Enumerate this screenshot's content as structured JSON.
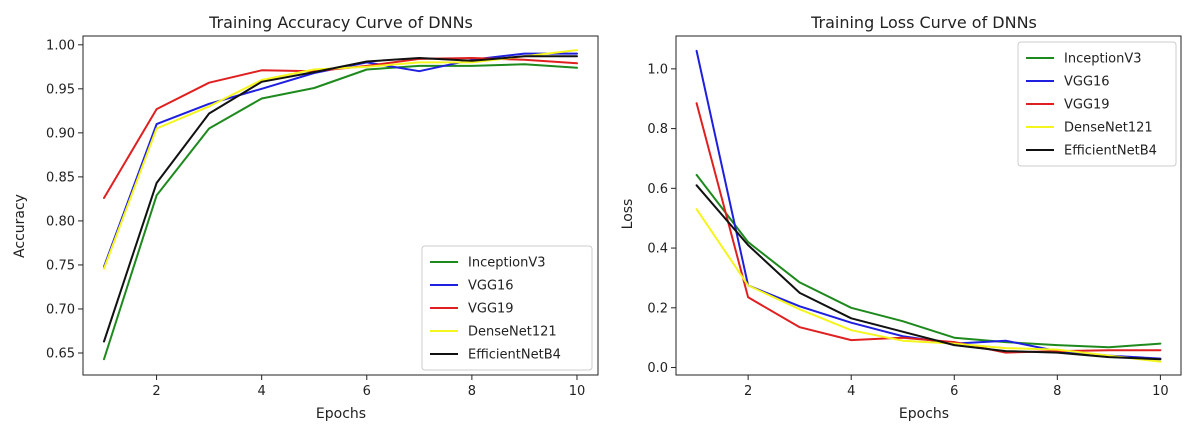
{
  "chart_data": [
    {
      "type": "line",
      "title": "Training Accuracy Curve of DNNs",
      "xlabel": "Epochs",
      "ylabel": "Accuracy",
      "xlim": [
        0.6,
        10.4
      ],
      "ylim": [
        0.625,
        1.01
      ],
      "xticks": [
        2,
        4,
        6,
        8,
        10
      ],
      "yticks": [
        0.65,
        0.7,
        0.75,
        0.8,
        0.85,
        0.9,
        0.95,
        1.0
      ],
      "ytick_format": 2,
      "grid": false,
      "legend_position": "lower-right",
      "x": [
        1,
        2,
        3,
        4,
        5,
        6,
        7,
        8,
        9,
        10
      ],
      "series": [
        {
          "name": "InceptionV3",
          "color": "#1e8a1e",
          "values": [
            0.643,
            0.829,
            0.905,
            0.939,
            0.951,
            0.972,
            0.976,
            0.976,
            0.978,
            0.974
          ]
        },
        {
          "name": "VGG16",
          "color": "#1f1fe0",
          "values": [
            0.748,
            0.91,
            0.933,
            0.95,
            0.968,
            0.98,
            0.97,
            0.983,
            0.99,
            0.99
          ]
        },
        {
          "name": "VGG19",
          "color": "#e02020",
          "values": [
            0.826,
            0.927,
            0.957,
            0.971,
            0.97,
            0.976,
            0.984,
            0.985,
            0.983,
            0.979
          ]
        },
        {
          "name": "DenseNet121",
          "color": "#f5f51e",
          "values": [
            0.746,
            0.905,
            0.93,
            0.96,
            0.972,
            0.975,
            0.98,
            0.98,
            0.987,
            0.994
          ]
        },
        {
          "name": "EfficientNetB4",
          "color": "#111111",
          "values": [
            0.663,
            0.843,
            0.922,
            0.958,
            0.969,
            0.981,
            0.985,
            0.982,
            0.987,
            0.987
          ]
        }
      ]
    },
    {
      "type": "line",
      "title": "Training Loss Curve of DNNs",
      "xlabel": "Epochs",
      "ylabel": "Loss",
      "xlim": [
        0.6,
        10.4
      ],
      "ylim": [
        -0.025,
        1.11
      ],
      "xticks": [
        2,
        4,
        6,
        8,
        10
      ],
      "yticks": [
        0.0,
        0.2,
        0.4,
        0.6,
        0.8,
        1.0
      ],
      "ytick_format": 1,
      "grid": false,
      "legend_position": "upper-right",
      "x": [
        1,
        2,
        3,
        4,
        5,
        6,
        7,
        8,
        9,
        10
      ],
      "series": [
        {
          "name": "InceptionV3",
          "color": "#1e8a1e",
          "values": [
            0.645,
            0.42,
            0.285,
            0.2,
            0.155,
            0.1,
            0.085,
            0.075,
            0.068,
            0.08
          ]
        },
        {
          "name": "VGG16",
          "color": "#1f1fe0",
          "values": [
            1.06,
            0.275,
            0.205,
            0.15,
            0.105,
            0.08,
            0.09,
            0.055,
            0.04,
            0.03
          ]
        },
        {
          "name": "VGG19",
          "color": "#e02020",
          "values": [
            0.885,
            0.235,
            0.135,
            0.092,
            0.1,
            0.085,
            0.05,
            0.055,
            0.058,
            0.058
          ]
        },
        {
          "name": "DenseNet121",
          "color": "#f5f51e",
          "values": [
            0.53,
            0.275,
            0.195,
            0.125,
            0.09,
            0.08,
            0.065,
            0.06,
            0.04,
            0.02
          ]
        },
        {
          "name": "EfficientNetB4",
          "color": "#111111",
          "values": [
            0.61,
            0.41,
            0.25,
            0.165,
            0.12,
            0.075,
            0.055,
            0.05,
            0.035,
            0.028
          ]
        }
      ]
    }
  ]
}
